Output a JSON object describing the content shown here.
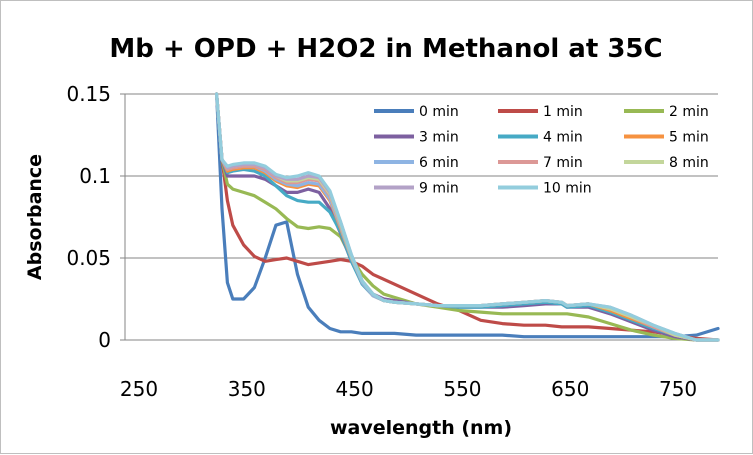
{
  "chart_data": {
    "type": "line",
    "title": "Mb + OPD + H2O2 in Methanol at 35C",
    "xlabel": "wavelength (nm)",
    "ylabel": "Absorbance",
    "xlim": [
      250,
      800
    ],
    "ylim": [
      0,
      0.15
    ],
    "xticks": [
      "250",
      "350",
      "450",
      "550",
      "650",
      "750"
    ],
    "xtick_values": [
      250,
      350,
      450,
      550,
      650,
      750
    ],
    "yticks": [
      "0",
      "0.05",
      "0.1",
      "0.15"
    ],
    "ytick_values": [
      0,
      0.05,
      0.1,
      0.15
    ],
    "grid": "horizontal-major",
    "legend_position": "top-right-inside",
    "x": [
      335,
      340,
      345,
      350,
      360,
      370,
      380,
      390,
      400,
      410,
      420,
      430,
      440,
      450,
      460,
      470,
      480,
      490,
      500,
      520,
      540,
      560,
      580,
      600,
      620,
      640,
      655,
      660,
      680,
      700,
      720,
      740,
      760,
      780,
      800
    ],
    "series": [
      {
        "name": "0 min",
        "color": "#4a7ebb",
        "values": [
          0.15,
          0.08,
          0.035,
          0.025,
          0.025,
          0.032,
          0.05,
          0.07,
          0.072,
          0.04,
          0.02,
          0.012,
          0.007,
          0.005,
          0.005,
          0.004,
          0.004,
          0.004,
          0.004,
          0.003,
          0.003,
          0.003,
          0.003,
          0.003,
          0.002,
          0.002,
          0.002,
          0.002,
          0.002,
          0.002,
          0.002,
          0.002,
          0.002,
          0.003,
          0.007
        ]
      },
      {
        "name": "1 min",
        "color": "#be4b48",
        "values": [
          0.15,
          0.11,
          0.085,
          0.07,
          0.058,
          0.051,
          0.048,
          0.049,
          0.05,
          0.048,
          0.046,
          0.047,
          0.048,
          0.049,
          0.048,
          0.045,
          0.04,
          0.037,
          0.034,
          0.028,
          0.022,
          0.018,
          0.012,
          0.01,
          0.009,
          0.009,
          0.008,
          0.008,
          0.008,
          0.007,
          0.006,
          0.005,
          0.003,
          0.001,
          0.0
        ]
      },
      {
        "name": "2 min",
        "color": "#98b954",
        "values": [
          0.15,
          0.11,
          0.095,
          0.092,
          0.09,
          0.088,
          0.084,
          0.08,
          0.074,
          0.069,
          0.068,
          0.069,
          0.068,
          0.063,
          0.05,
          0.04,
          0.033,
          0.028,
          0.026,
          0.022,
          0.02,
          0.018,
          0.017,
          0.016,
          0.016,
          0.016,
          0.016,
          0.016,
          0.014,
          0.01,
          0.006,
          0.003,
          0.001,
          0.0,
          0.0
        ]
      },
      {
        "name": "3 min",
        "color": "#7d60a0",
        "values": [
          0.15,
          0.11,
          0.1,
          0.1,
          0.1,
          0.1,
          0.098,
          0.094,
          0.09,
          0.09,
          0.092,
          0.09,
          0.08,
          0.065,
          0.048,
          0.035,
          0.028,
          0.025,
          0.024,
          0.022,
          0.021,
          0.02,
          0.02,
          0.02,
          0.021,
          0.022,
          0.022,
          0.02,
          0.02,
          0.016,
          0.011,
          0.006,
          0.002,
          0.0,
          0.0
        ]
      },
      {
        "name": "4 min",
        "color": "#46aac5",
        "values": [
          0.15,
          0.11,
          0.102,
          0.103,
          0.104,
          0.103,
          0.1,
          0.094,
          0.088,
          0.085,
          0.084,
          0.084,
          0.078,
          0.066,
          0.048,
          0.034,
          0.027,
          0.024,
          0.023,
          0.022,
          0.021,
          0.02,
          0.02,
          0.021,
          0.022,
          0.023,
          0.022,
          0.02,
          0.021,
          0.017,
          0.012,
          0.007,
          0.003,
          0.0,
          0.0
        ]
      },
      {
        "name": "5 min",
        "color": "#f69240",
        "values": [
          0.15,
          0.11,
          0.103,
          0.104,
          0.105,
          0.105,
          0.102,
          0.097,
          0.094,
          0.093,
          0.095,
          0.094,
          0.085,
          0.068,
          0.05,
          0.035,
          0.027,
          0.024,
          0.023,
          0.022,
          0.021,
          0.021,
          0.021,
          0.022,
          0.023,
          0.024,
          0.023,
          0.021,
          0.022,
          0.018,
          0.013,
          0.008,
          0.003,
          0.0,
          0.0
        ]
      },
      {
        "name": "6 min",
        "color": "#8eb4e3",
        "values": [
          0.15,
          0.11,
          0.104,
          0.105,
          0.106,
          0.106,
          0.103,
          0.098,
          0.095,
          0.094,
          0.096,
          0.095,
          0.086,
          0.069,
          0.05,
          0.035,
          0.027,
          0.024,
          0.023,
          0.022,
          0.021,
          0.021,
          0.021,
          0.022,
          0.023,
          0.024,
          0.023,
          0.021,
          0.022,
          0.019,
          0.014,
          0.008,
          0.003,
          0.0,
          0.0
        ]
      },
      {
        "name": "7 min",
        "color": "#dc9896",
        "values": [
          0.15,
          0.11,
          0.104,
          0.105,
          0.106,
          0.106,
          0.104,
          0.099,
          0.096,
          0.096,
          0.098,
          0.097,
          0.088,
          0.07,
          0.051,
          0.036,
          0.028,
          0.024,
          0.023,
          0.022,
          0.021,
          0.021,
          0.021,
          0.022,
          0.023,
          0.024,
          0.023,
          0.021,
          0.022,
          0.019,
          0.014,
          0.008,
          0.003,
          0.0,
          0.0
        ]
      },
      {
        "name": "8 min",
        "color": "#c3d69b",
        "values": [
          0.15,
          0.11,
          0.105,
          0.106,
          0.107,
          0.107,
          0.105,
          0.1,
          0.097,
          0.097,
          0.099,
          0.098,
          0.089,
          0.071,
          0.051,
          0.036,
          0.028,
          0.024,
          0.023,
          0.022,
          0.021,
          0.021,
          0.021,
          0.022,
          0.023,
          0.024,
          0.023,
          0.021,
          0.022,
          0.019,
          0.014,
          0.009,
          0.003,
          0.0,
          0.0
        ]
      },
      {
        "name": "9 min",
        "color": "#b3a2c7",
        "values": [
          0.15,
          0.11,
          0.105,
          0.106,
          0.107,
          0.107,
          0.105,
          0.1,
          0.098,
          0.098,
          0.1,
          0.099,
          0.09,
          0.072,
          0.052,
          0.036,
          0.028,
          0.024,
          0.023,
          0.022,
          0.021,
          0.021,
          0.021,
          0.022,
          0.023,
          0.024,
          0.023,
          0.021,
          0.022,
          0.02,
          0.015,
          0.009,
          0.004,
          0.0,
          0.0
        ]
      },
      {
        "name": "10 min",
        "color": "#93cddd",
        "values": [
          0.15,
          0.11,
          0.106,
          0.107,
          0.108,
          0.108,
          0.106,
          0.101,
          0.099,
          0.1,
          0.102,
          0.1,
          0.091,
          0.072,
          0.052,
          0.036,
          0.028,
          0.024,
          0.023,
          0.022,
          0.021,
          0.021,
          0.021,
          0.022,
          0.023,
          0.024,
          0.023,
          0.021,
          0.022,
          0.02,
          0.015,
          0.009,
          0.004,
          0.0,
          0.0
        ]
      }
    ]
  }
}
